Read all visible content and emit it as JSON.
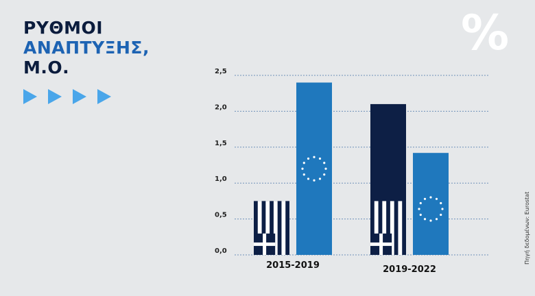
{
  "header": {
    "title_line1": "ΡΥΘΜΟΙ",
    "title_line2": "ΑΝΑΠΤΥΞΗΣ,",
    "title_line3": "Μ.Ο.",
    "percent_symbol": "%",
    "source": "Πηγή δεδομένων: Eurostat"
  },
  "colors": {
    "title_dark": "#0b1c3d",
    "title_blue": "#1d63b3",
    "greece_dark": "#0d1f45",
    "eu_blue": "#1f78bd",
    "grid": "#6e8fb8",
    "arrow": "#4aa6ea",
    "background": "#e6e8ea"
  },
  "chart_data": {
    "type": "bar",
    "categories": [
      "2015-2019",
      "2019-2022"
    ],
    "series": [
      {
        "id": "greece",
        "icon": "greece-flag-icon",
        "values": [
          0.75,
          2.1
        ]
      },
      {
        "id": "eu",
        "icon": "eu-stars-icon",
        "values": [
          2.4,
          1.42
        ]
      }
    ],
    "yticks": [
      "0,0",
      "0,5",
      "1,0",
      "1,5",
      "2,0",
      "2,5"
    ],
    "ylim": [
      0,
      2.5
    ],
    "grid": true
  }
}
